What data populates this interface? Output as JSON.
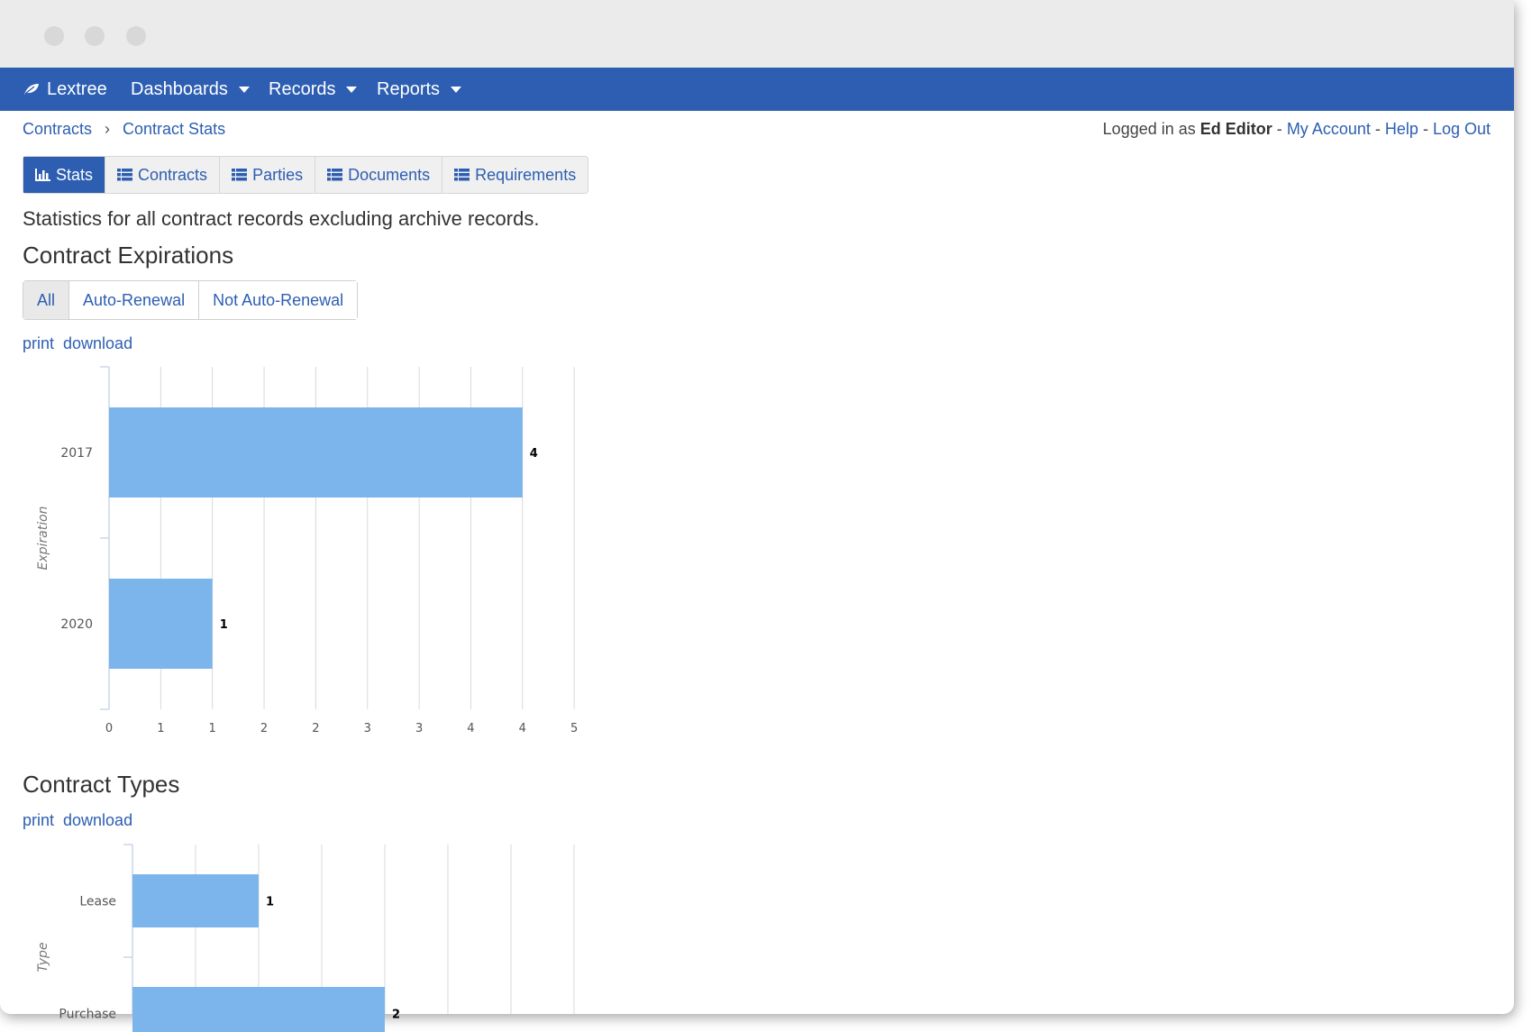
{
  "app": {
    "brand": "Lextree",
    "nav": [
      {
        "label": "Dashboards"
      },
      {
        "label": "Records"
      },
      {
        "label": "Reports"
      }
    ]
  },
  "breadcrumb": {
    "items": [
      "Contracts",
      "Contract Stats"
    ],
    "separator": "›"
  },
  "user": {
    "prefix": "Logged in as",
    "name": "Ed Editor",
    "links": [
      "My Account",
      "Help",
      "Log Out"
    ],
    "sep": "-"
  },
  "tabs": [
    {
      "label": "Stats",
      "icon": "bar-chart-icon",
      "active": true
    },
    {
      "label": "Contracts",
      "icon": "list-icon"
    },
    {
      "label": "Parties",
      "icon": "list-icon"
    },
    {
      "label": "Documents",
      "icon": "list-icon"
    },
    {
      "label": "Requirements",
      "icon": "list-icon"
    }
  ],
  "description": "Statistics for all contract records excluding archive records.",
  "sections": {
    "expirations": {
      "title": "Contract Expirations",
      "filters": [
        "All",
        "Auto-Renewal",
        "Not Auto-Renewal"
      ],
      "actions": [
        "print",
        "download"
      ]
    },
    "types": {
      "title": "Contract Types",
      "actions": [
        "print",
        "download"
      ]
    }
  },
  "colors": {
    "accent": "#2d5eb2",
    "bar": "#7cb5ec"
  },
  "chart_data": [
    {
      "type": "bar",
      "orientation": "horizontal",
      "categories": [
        "2017",
        "2020"
      ],
      "values": [
        4,
        1
      ],
      "ylabel": "Expiration",
      "x_tick_labels": [
        "0",
        "1",
        "1",
        "2",
        "2",
        "3",
        "3",
        "4",
        "4",
        "5"
      ],
      "xlim": [
        0,
        4.5
      ],
      "grid": true
    },
    {
      "type": "bar",
      "orientation": "horizontal",
      "categories": [
        "Lease",
        "Purchase"
      ],
      "values": [
        1,
        2
      ],
      "ylabel": "Type",
      "xlim": [
        0,
        3.5
      ],
      "grid": true
    }
  ]
}
